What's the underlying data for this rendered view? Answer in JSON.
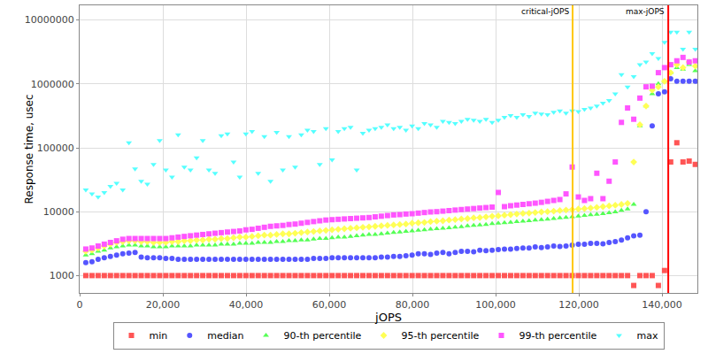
{
  "chart_data": {
    "type": "scatter",
    "x_label": "jOPS",
    "y_label": "Response time, usec",
    "log": "y",
    "grid": true,
    "legend": "bottom",
    "xlim": [
      0,
      148500
    ],
    "xticks": [
      0,
      {
        "value": 20000,
        "label": "20,000"
      },
      {
        "value": 40000,
        "label": "40,000"
      },
      {
        "value": 60000,
        "label": "60,000"
      },
      {
        "value": 80000,
        "label": "80,000"
      },
      {
        "value": 100000,
        "label": "100,000"
      },
      {
        "value": 120000,
        "label": "120,000"
      },
      {
        "value": 140000,
        "label": "140,000"
      }
    ],
    "ylim": [
      535,
      17000000
    ],
    "yticks": [
      1000,
      10000,
      100000,
      1000000,
      10000000
    ],
    "annotations": [
      {
        "text": "critical-jOPS",
        "x": 118500,
        "color": "#ffc800"
      },
      {
        "text": "max-jOPS",
        "x": 141500,
        "color": "#ff0000"
      }
    ],
    "x": [
      1480,
      2960,
      4440,
      5920,
      7400,
      8880,
      10360,
      11840,
      13320,
      14800,
      16280,
      17760,
      19240,
      20720,
      22200,
      23680,
      25160,
      26640,
      28120,
      29600,
      31080,
      32560,
      34040,
      35520,
      37000,
      38480,
      39960,
      41440,
      42920,
      44400,
      45880,
      47360,
      48840,
      50320,
      51800,
      53280,
      54760,
      56240,
      57720,
      59200,
      60680,
      62160,
      63640,
      65120,
      66600,
      68080,
      69560,
      71040,
      72520,
      74000,
      75480,
      76960,
      78440,
      79920,
      81400,
      82880,
      84360,
      85840,
      87320,
      88800,
      90280,
      91760,
      93240,
      94720,
      96200,
      97680,
      99160,
      100640,
      102120,
      103600,
      105080,
      106560,
      108040,
      109520,
      111000,
      112480,
      113960,
      115440,
      116920,
      118400,
      119880,
      121360,
      122840,
      124320,
      125800,
      127280,
      128760,
      130240,
      131720,
      133200,
      134680,
      136160,
      137640,
      139120,
      140600,
      142080,
      143560,
      145040,
      146520,
      148000
    ],
    "series": [
      {
        "name": "min",
        "color": "#ff5555",
        "marker": "square",
        "values": [
          1000,
          1000,
          1000,
          1000,
          1000,
          1000,
          1000,
          1000,
          1000,
          1000,
          1000,
          1000,
          1000,
          1000,
          1000,
          1000,
          1000,
          1000,
          1000,
          1000,
          1000,
          1000,
          1000,
          1000,
          1000,
          1000,
          1000,
          1000,
          1000,
          1000,
          1000,
          1000,
          1000,
          1000,
          1000,
          1000,
          1000,
          1000,
          1000,
          1000,
          1000,
          1000,
          1000,
          1000,
          1000,
          1000,
          1000,
          1000,
          1000,
          1000,
          1000,
          1000,
          1000,
          1000,
          1000,
          1000,
          1000,
          1000,
          1000,
          1000,
          1000,
          1000,
          1000,
          1000,
          1000,
          1000,
          1000,
          1000,
          1000,
          1000,
          1000,
          1000,
          1000,
          1000,
          1000,
          1000,
          1000,
          1000,
          1000,
          1000,
          1000,
          1000,
          1000,
          1000,
          1000,
          1000,
          1000,
          1000,
          1000,
          700,
          1000,
          1000,
          1000,
          700,
          1200,
          60000,
          120000,
          60000,
          62000,
          55000
        ]
      },
      {
        "name": "median",
        "color": "#5555ff",
        "marker": "circle",
        "values": [
          1600,
          1650,
          1800,
          1900,
          2000,
          2100,
          2200,
          2250,
          2300,
          1950,
          1900,
          1900,
          1900,
          1850,
          1850,
          1800,
          1800,
          1800,
          1800,
          1800,
          1800,
          1800,
          1800,
          1800,
          1800,
          1800,
          1800,
          1800,
          1800,
          1800,
          1800,
          1800,
          1800,
          1800,
          1800,
          1800,
          1800,
          1850,
          1850,
          1850,
          1900,
          1900,
          1900,
          1900,
          1900,
          1900,
          1900,
          1900,
          1950,
          1950,
          2000,
          2000,
          2050,
          2100,
          2200,
          2200,
          2150,
          2250,
          2300,
          2200,
          2300,
          2400,
          2400,
          2350,
          2500,
          2450,
          2500,
          2550,
          2600,
          2600,
          2650,
          2700,
          2700,
          2800,
          2750,
          2800,
          2900,
          2850,
          2900,
          3000,
          3100,
          3100,
          3200,
          3200,
          3150,
          3300,
          3400,
          3600,
          3900,
          4200,
          4300,
          10000,
          220000,
          700000,
          750000,
          1200000,
          1100000,
          1100000,
          1100000,
          1100000
        ]
      },
      {
        "name": "90-th percentile",
        "color": "#55ff55",
        "marker": "triangle-up",
        "values": [
          2100,
          2200,
          2400,
          2500,
          2700,
          2800,
          2900,
          3000,
          3000,
          2900,
          2900,
          2800,
          2800,
          2800,
          2900,
          2900,
          2900,
          2900,
          3000,
          3000,
          3000,
          3000,
          3100,
          3100,
          3100,
          3200,
          3200,
          3200,
          3300,
          3300,
          3300,
          3400,
          3400,
          3500,
          3500,
          3600,
          3600,
          3700,
          3800,
          3800,
          3900,
          4000,
          4000,
          4100,
          4200,
          4300,
          4400,
          4400,
          4500,
          4600,
          4700,
          4800,
          4900,
          5000,
          5100,
          5200,
          5300,
          5400,
          5500,
          5600,
          5700,
          5800,
          6000,
          6100,
          6200,
          6300,
          6500,
          6600,
          6700,
          6800,
          7000,
          7100,
          7200,
          7400,
          7500,
          7600,
          7800,
          8000,
          8100,
          8300,
          8500,
          8700,
          8900,
          9100,
          9300,
          9600,
          9900,
          10500,
          11000,
          13000,
          220000,
          450000,
          700000,
          1000000,
          1100000,
          1500000,
          1800000,
          1700000,
          2000000,
          1600000
        ]
      },
      {
        "name": "95-th percentile",
        "color": "#ffff55",
        "marker": "diamond",
        "values": [
          2400,
          2500,
          2700,
          2900,
          3100,
          3300,
          3400,
          3500,
          3500,
          3400,
          3400,
          3300,
          3300,
          3300,
          3400,
          3400,
          3500,
          3500,
          3600,
          3600,
          3700,
          3700,
          3800,
          3800,
          3900,
          4000,
          4000,
          4100,
          4200,
          4300,
          4300,
          4400,
          4500,
          4500,
          4600,
          4700,
          4800,
          4900,
          5000,
          5100,
          5200,
          5300,
          5400,
          5500,
          5600,
          5700,
          5800,
          5900,
          6000,
          6100,
          6200,
          6300,
          6400,
          6600,
          6700,
          6800,
          7000,
          7100,
          7200,
          7400,
          7500,
          7700,
          7800,
          8000,
          8100,
          8300,
          8500,
          8600,
          8800,
          9000,
          9200,
          9400,
          9500,
          9700,
          9900,
          10000,
          10200,
          10400,
          10600,
          10800,
          11000,
          11200,
          11400,
          11700,
          12000,
          12300,
          12600,
          13000,
          13500,
          60000,
          230000,
          450000,
          800000,
          900000,
          1100000,
          1500000,
          2000000,
          1800000,
          2200000,
          1900000
        ]
      },
      {
        "name": "99-th percentile",
        "color": "#ff55ff",
        "marker": "square",
        "values": [
          2600,
          2700,
          2900,
          3100,
          3300,
          3500,
          3700,
          3800,
          3800,
          3800,
          3800,
          3800,
          3800,
          3800,
          3900,
          4000,
          4100,
          4200,
          4300,
          4400,
          4500,
          4600,
          4700,
          4800,
          4900,
          5000,
          5200,
          5300,
          5500,
          5700,
          5900,
          6000,
          6100,
          6300,
          6400,
          6600,
          6800,
          7000,
          7200,
          7400,
          7500,
          7600,
          7700,
          7800,
          7900,
          8000,
          8100,
          8300,
          8500,
          8700,
          8900,
          9000,
          9200,
          9300,
          9500,
          9700,
          9900,
          10000,
          10200,
          10400,
          10600,
          10800,
          11000,
          11200,
          11400,
          11600,
          11800,
          20000,
          12000,
          12400,
          12700,
          13000,
          13300,
          13600,
          14000,
          14500,
          15000,
          15500,
          19000,
          50000,
          17000,
          15000,
          16000,
          40000,
          16000,
          30000,
          60000,
          250000,
          420000,
          280000,
          600000,
          900000,
          920000,
          1500000,
          1800000,
          2000000,
          2300000,
          2600000,
          2200000,
          2300000
        ]
      },
      {
        "name": "max",
        "color": "#55ffff",
        "marker": "triangle-down",
        "values": [
          22000,
          19000,
          17000,
          20000,
          25000,
          28000,
          22000,
          120000,
          47000,
          30000,
          27000,
          55000,
          130000,
          45000,
          35000,
          160000,
          50000,
          45000,
          70000,
          130000,
          45000,
          40000,
          155000,
          165000,
          60000,
          35000,
          165000,
          180000,
          40000,
          150000,
          30000,
          175000,
          45000,
          150000,
          50000,
          160000,
          190000,
          180000,
          55000,
          200000,
          65000,
          180000,
          200000,
          210000,
          45000,
          170000,
          190000,
          200000,
          210000,
          230000,
          200000,
          210000,
          190000,
          220000,
          200000,
          240000,
          230000,
          210000,
          260000,
          250000,
          240000,
          260000,
          280000,
          270000,
          260000,
          280000,
          250000,
          270000,
          300000,
          320000,
          300000,
          330000,
          310000,
          350000,
          340000,
          330000,
          360000,
          380000,
          350000,
          380000,
          370000,
          400000,
          420000,
          450000,
          500000,
          550000,
          700000,
          1400000,
          900000,
          1300000,
          2000000,
          2200000,
          3000000,
          2500000,
          4500000,
          6500000,
          6500000,
          3500000,
          6500000,
          3500000
        ]
      }
    ]
  }
}
